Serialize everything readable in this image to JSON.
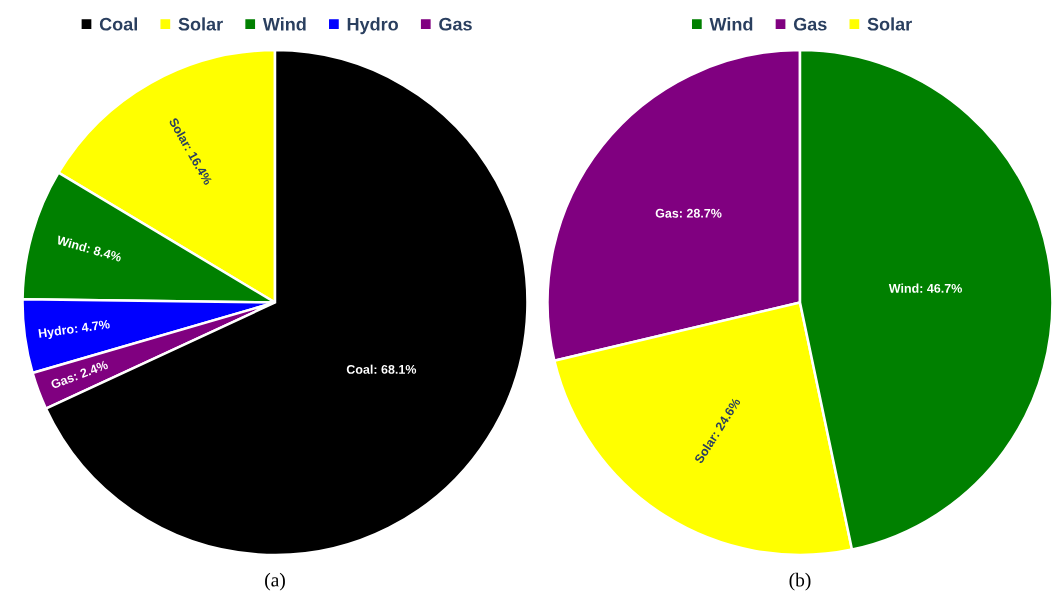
{
  "chart_data": [
    {
      "type": "pie",
      "title": "(a)",
      "categories": [
        "Coal",
        "Solar",
        "Wind",
        "Hydro",
        "Gas"
      ],
      "values": [
        68.1,
        16.4,
        8.4,
        4.7,
        2.4
      ],
      "colors": [
        "#000000",
        "#ffff00",
        "#008000",
        "#0000ff",
        "#800080"
      ],
      "value_labels": [
        "Coal: 68.1%",
        "Solar: 16.4%",
        "Wind: 8.4%",
        "Hydro: 4.7%",
        "Gas: 2.4%"
      ],
      "legend": "top"
    },
    {
      "type": "pie",
      "title": "(b)",
      "categories": [
        "Wind",
        "Gas",
        "Solar"
      ],
      "values": [
        46.7,
        28.7,
        24.6
      ],
      "colors": [
        "#008000",
        "#800080",
        "#ffff00"
      ],
      "value_labels": [
        "Wind: 46.7%",
        "Gas: 28.7%",
        "Solar: 24.6%"
      ],
      "legend": "top"
    }
  ]
}
